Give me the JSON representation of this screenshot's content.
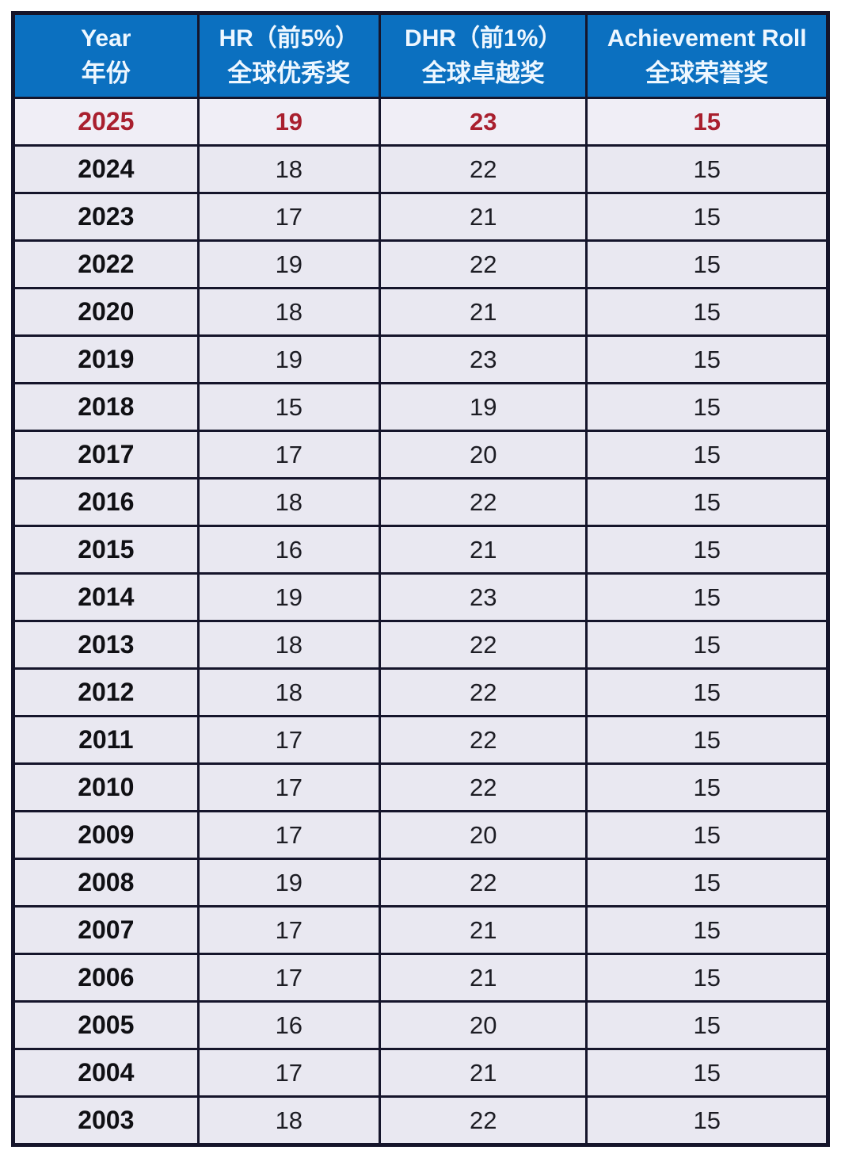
{
  "chart_data": {
    "type": "table",
    "columns": [
      {
        "key": "year",
        "en": "Year",
        "zh": "年份"
      },
      {
        "key": "hr",
        "en": "HR（前5%）",
        "zh": "全球优秀奖"
      },
      {
        "key": "dhr",
        "en": "DHR（前1%）",
        "zh": "全球卓越奖"
      },
      {
        "key": "ar",
        "en": "Achievement Roll",
        "zh": "全球荣誉奖"
      }
    ],
    "rows": [
      {
        "year": "2025",
        "hr": "19",
        "dhr": "23",
        "ar": "15",
        "highlight": true
      },
      {
        "year": "2024",
        "hr": "18",
        "dhr": "22",
        "ar": "15",
        "highlight": false
      },
      {
        "year": "2023",
        "hr": "17",
        "dhr": "21",
        "ar": "15",
        "highlight": false
      },
      {
        "year": "2022",
        "hr": "19",
        "dhr": "22",
        "ar": "15",
        "highlight": false
      },
      {
        "year": "2020",
        "hr": "18",
        "dhr": "21",
        "ar": "15",
        "highlight": false
      },
      {
        "year": "2019",
        "hr": "19",
        "dhr": "23",
        "ar": "15",
        "highlight": false
      },
      {
        "year": "2018",
        "hr": "15",
        "dhr": "19",
        "ar": "15",
        "highlight": false
      },
      {
        "year": "2017",
        "hr": "17",
        "dhr": "20",
        "ar": "15",
        "highlight": false
      },
      {
        "year": "2016",
        "hr": "18",
        "dhr": "22",
        "ar": "15",
        "highlight": false
      },
      {
        "year": "2015",
        "hr": "16",
        "dhr": "21",
        "ar": "15",
        "highlight": false
      },
      {
        "year": "2014",
        "hr": "19",
        "dhr": "23",
        "ar": "15",
        "highlight": false
      },
      {
        "year": "2013",
        "hr": "18",
        "dhr": "22",
        "ar": "15",
        "highlight": false
      },
      {
        "year": "2012",
        "hr": "18",
        "dhr": "22",
        "ar": "15",
        "highlight": false
      },
      {
        "year": "2011",
        "hr": "17",
        "dhr": "22",
        "ar": "15",
        "highlight": false
      },
      {
        "year": "2010",
        "hr": "17",
        "dhr": "22",
        "ar": "15",
        "highlight": false
      },
      {
        "year": "2009",
        "hr": "17",
        "dhr": "20",
        "ar": "15",
        "highlight": false
      },
      {
        "year": "2008",
        "hr": "19",
        "dhr": "22",
        "ar": "15",
        "highlight": false
      },
      {
        "year": "2007",
        "hr": "17",
        "dhr": "21",
        "ar": "15",
        "highlight": false
      },
      {
        "year": "2006",
        "hr": "17",
        "dhr": "21",
        "ar": "15",
        "highlight": false
      },
      {
        "year": "2005",
        "hr": "16",
        "dhr": "20",
        "ar": "15",
        "highlight": false
      },
      {
        "year": "2004",
        "hr": "17",
        "dhr": "21",
        "ar": "15",
        "highlight": false
      },
      {
        "year": "2003",
        "hr": "18",
        "dhr": "22",
        "ar": "15",
        "highlight": false
      }
    ],
    "layout_hints": {
      "grid": true,
      "header_rows": 1,
      "highlight_row_year": "2025"
    }
  },
  "colors": {
    "header_bg": "#0b70c0",
    "header_text": "#eef7ff",
    "row_bg": "#e9e8f1",
    "highlight_row_bg": "#f0eef6",
    "highlight_text": "#a91f2e",
    "border": "#15152b",
    "year_text": "#101014",
    "value_text": "#1d1d24",
    "page_bg": "#ffffff"
  }
}
